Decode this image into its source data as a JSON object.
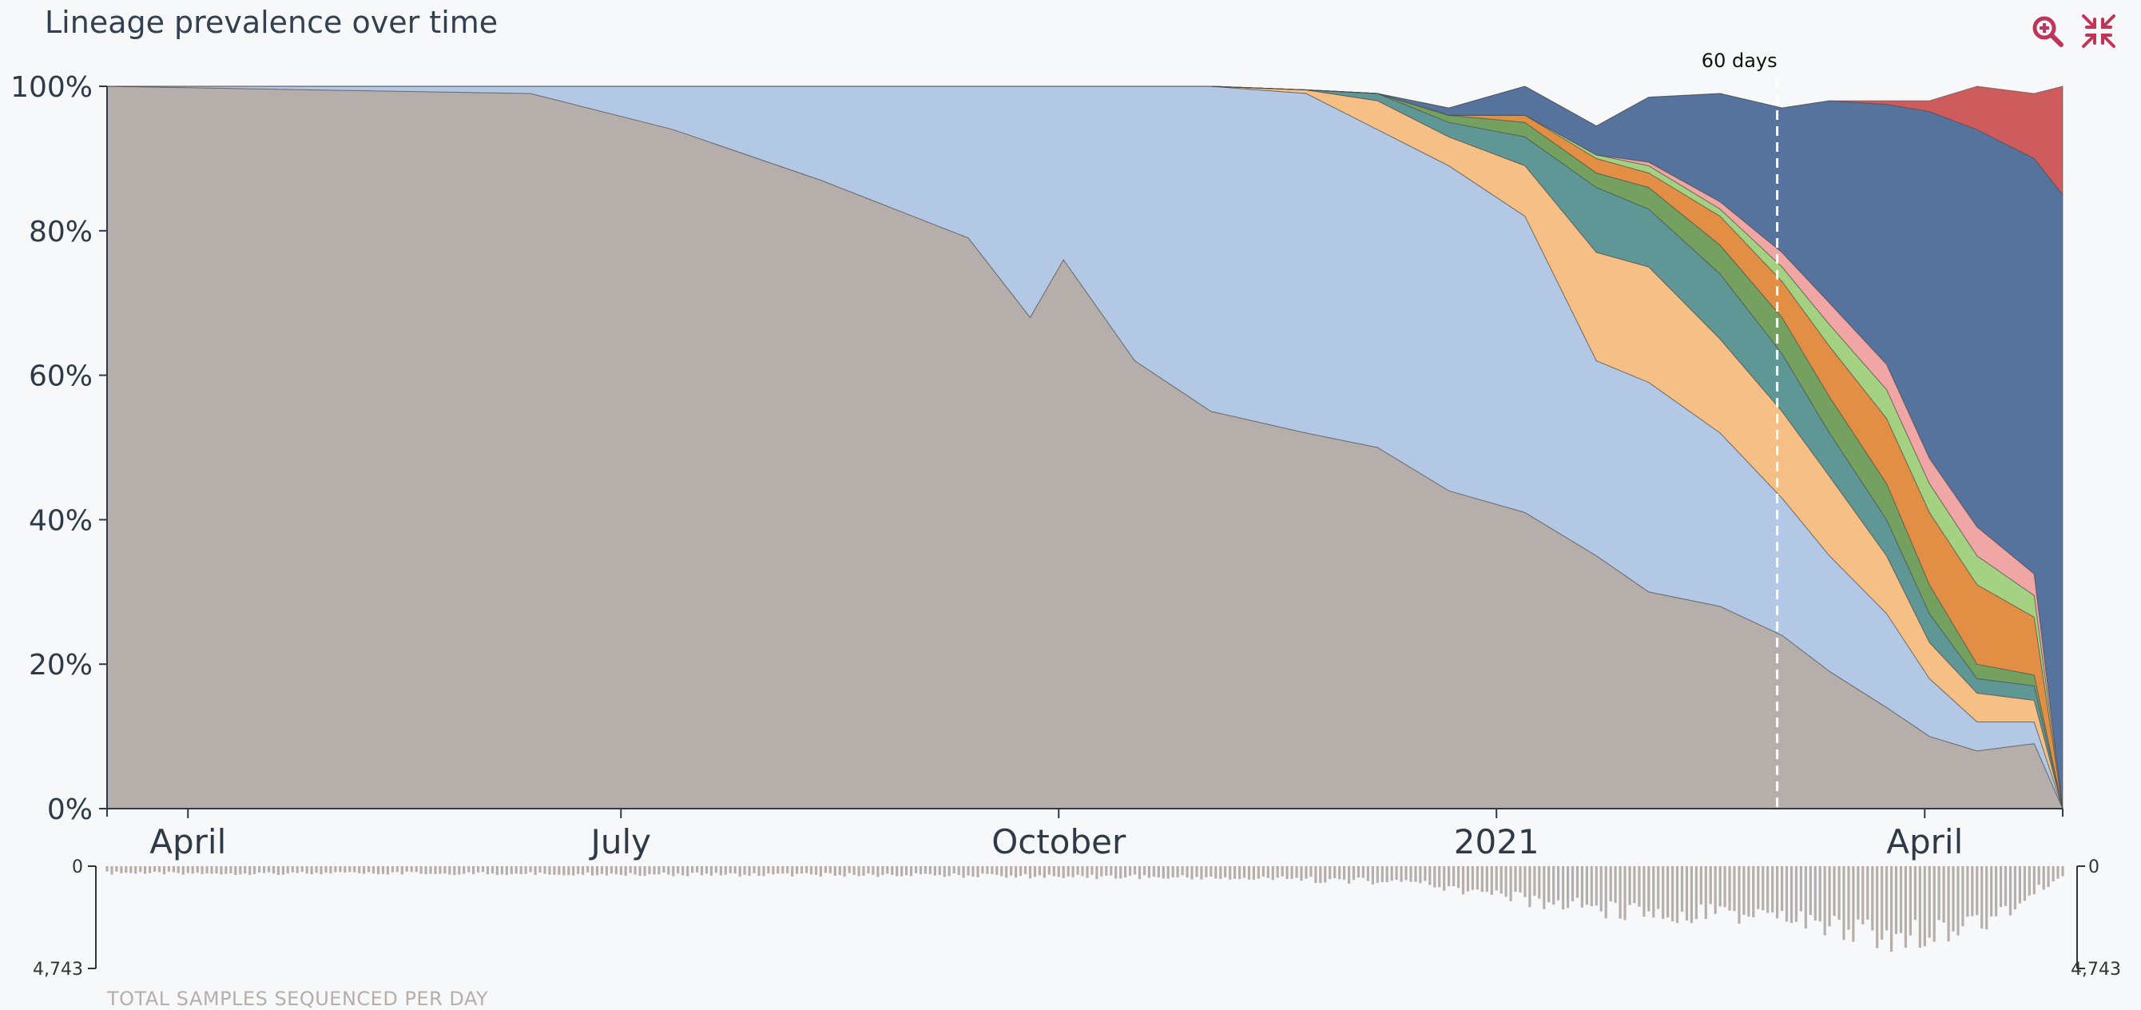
{
  "header": {
    "title": "Lineage prevalence over time",
    "zoom_icon": "zoom-in-icon",
    "collapse_icon": "collapse-icon",
    "accent": "#c0365b"
  },
  "chart_data": {
    "type": "area",
    "stacked": true,
    "normalized": true,
    "title": "Lineage prevalence over time",
    "xlabel": "",
    "ylabel": "",
    "ylim": [
      0,
      100
    ],
    "y_unit": "%",
    "y_ticks": [
      0,
      20,
      40,
      60,
      80,
      100
    ],
    "y_tick_labels": [
      "0%",
      "20%",
      "40%",
      "60%",
      "80%",
      "100%"
    ],
    "x_range": [
      "2020-03-15",
      "2021-04-30"
    ],
    "x_ticks": [
      {
        "date": "2020-04-01",
        "label": "April"
      },
      {
        "date": "2020-07-01",
        "label": "July"
      },
      {
        "date": "2020-10-01",
        "label": "October"
      },
      {
        "date": "2021-01-01",
        "label": "2021"
      },
      {
        "date": "2021-04-01",
        "label": "April"
      }
    ],
    "grid": false,
    "legend": "none",
    "x": [
      "2020-03-15",
      "2020-06-12",
      "2020-07-12",
      "2020-08-12",
      "2020-09-12",
      "2020-09-25",
      "2020-10-02",
      "2020-10-17",
      "2020-11-02",
      "2020-11-22",
      "2020-12-07",
      "2020-12-22",
      "2021-01-07",
      "2021-01-22",
      "2021-02-02",
      "2021-02-17",
      "2021-03-02",
      "2021-03-12",
      "2021-03-24",
      "2021-04-02",
      "2021-04-12",
      "2021-04-24",
      "2021-04-30"
    ],
    "series": [
      {
        "color": "#b6aeab",
        "values": [
          100,
          99,
          94,
          87,
          79,
          68,
          76,
          62,
          55,
          52,
          50,
          44,
          41,
          35,
          30,
          28,
          24,
          19,
          14,
          10,
          8,
          9,
          0
        ]
      },
      {
        "color": "#b3c8e4",
        "values": [
          0,
          1,
          6,
          13,
          21,
          32,
          24,
          38,
          45,
          47,
          44,
          45,
          41,
          27,
          29,
          24,
          19,
          16,
          13,
          8,
          4,
          3,
          0
        ]
      },
      {
        "color": "#f5bf85",
        "values": [
          0,
          0,
          0,
          0,
          0,
          0,
          0,
          0,
          0,
          0.5,
          4,
          4,
          7,
          15,
          16,
          13,
          12,
          11,
          8,
          5,
          4,
          3,
          0
        ]
      },
      {
        "color": "#5e9796",
        "values": [
          0,
          0,
          0,
          0,
          0,
          0,
          0,
          0,
          0,
          0,
          1,
          2,
          4,
          9,
          8,
          9,
          8,
          6,
          5,
          4,
          2,
          2,
          0
        ]
      },
      {
        "color": "#74a060",
        "values": [
          0,
          0,
          0,
          0,
          0,
          0,
          0,
          0,
          0,
          0,
          0,
          1,
          2,
          2,
          3,
          4,
          5,
          5,
          5,
          4,
          2,
          1.5,
          0
        ]
      },
      {
        "color": "#e28f45",
        "values": [
          0,
          0,
          0,
          0,
          0,
          0,
          0,
          0,
          0,
          0,
          0,
          0,
          1,
          2,
          2,
          4,
          5,
          7,
          9,
          10,
          11,
          8,
          0
        ]
      },
      {
        "color": "#a4d282",
        "values": [
          0,
          0,
          0,
          0,
          0,
          0,
          0,
          0,
          0,
          0,
          0,
          0,
          0,
          0.5,
          1,
          1,
          2,
          3,
          4,
          4,
          4,
          3,
          0
        ]
      },
      {
        "color": "#f0a6a4",
        "values": [
          0,
          0,
          0,
          0,
          0,
          0,
          0,
          0,
          0,
          0,
          0,
          0,
          0,
          0,
          0.5,
          1,
          2,
          3,
          3.5,
          3.5,
          4,
          3,
          0
        ]
      },
      {
        "color": "#56739e",
        "values": [
          0,
          0,
          0,
          0,
          0,
          0,
          0,
          0,
          0,
          0,
          0,
          1,
          4,
          4,
          9,
          15,
          20,
          28,
          36,
          48,
          55,
          57.5,
          85
        ]
      },
      {
        "color": "#cf5c5c",
        "values": [
          0,
          0,
          0,
          0,
          0,
          0,
          0,
          0,
          0,
          0,
          0,
          0,
          0,
          0,
          0,
          0,
          0,
          0,
          0.5,
          1.5,
          6,
          9,
          15
        ]
      }
    ],
    "annotations": [
      {
        "date": "2021-03-01",
        "label": "60 days",
        "style": "dashed-line"
      }
    ],
    "volume": {
      "caption": "TOTAL SAMPLES SEQUENCED PER DAY",
      "max_label": "4,743",
      "zero_label": "0",
      "max": 4743,
      "color": "#b6aeab",
      "x": [
        "2020-03-15",
        "2020-06-01",
        "2020-09-01",
        "2020-11-01",
        "2020-12-15",
        "2021-01-05",
        "2021-02-01",
        "2021-03-01",
        "2021-03-25",
        "2021-04-15",
        "2021-04-30"
      ],
      "values": [
        400,
        420,
        520,
        660,
        900,
        1900,
        2700,
        2900,
        4100,
        3100,
        500
      ]
    }
  }
}
